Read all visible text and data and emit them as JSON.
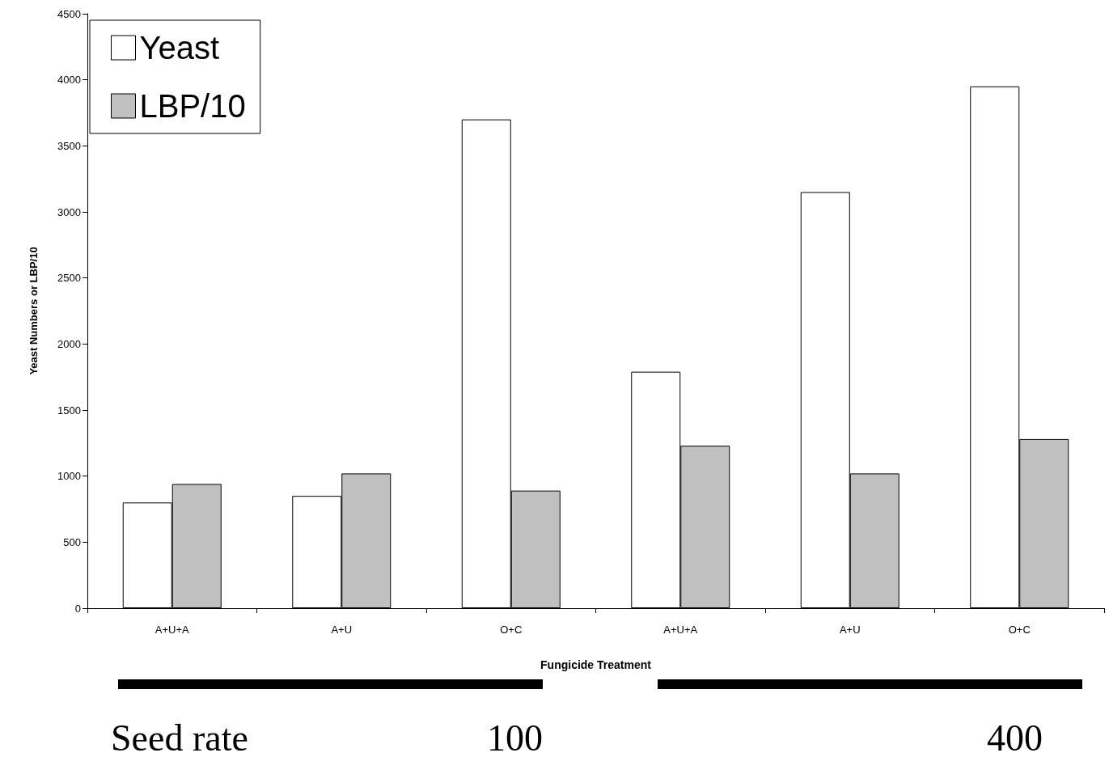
{
  "chart_data": {
    "type": "bar",
    "xlabel": "Fungicide Treatment",
    "ylabel": "Yeast Numbers or LBP/10",
    "categories": [
      "A+U+A",
      "A+U",
      "O+C",
      "A+U+A",
      "A+U",
      "O+C"
    ],
    "series": [
      {
        "name": "Yeast",
        "color": "#ffffff",
        "values": [
          800,
          850,
          3700,
          1790,
          3150,
          3950
        ]
      },
      {
        "name": "LBP/10",
        "color": "#c0c0c0",
        "values": [
          940,
          1020,
          890,
          1230,
          1020,
          1280
        ]
      }
    ],
    "ylim": [
      0,
      4500
    ],
    "yticks": [
      0,
      500,
      1000,
      1500,
      2000,
      2500,
      3000,
      3500,
      4000,
      4500
    ],
    "grid": false,
    "legend": "top left",
    "annotations": [
      "Seed rate",
      "100",
      "400"
    ]
  }
}
